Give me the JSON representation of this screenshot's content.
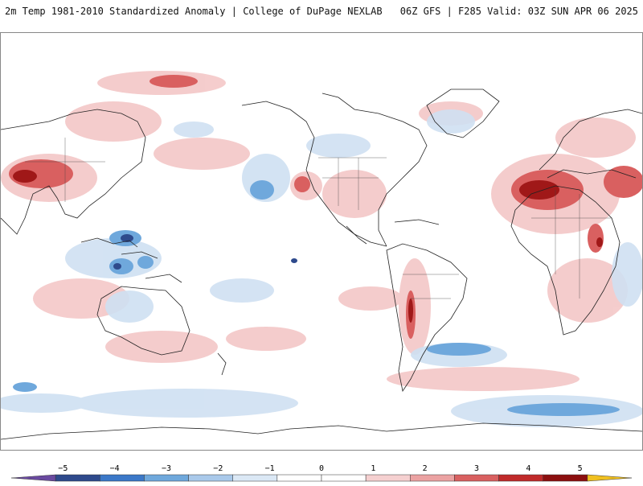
{
  "header": {
    "title": "2m Temp 1981-2010 Standardized Anomaly | College of DuPage NEXLAB",
    "run_info": "06Z GFS | F285 Valid: 03Z SUN APR 06 2025"
  },
  "colorbar": {
    "ticks": [
      {
        "value": -5,
        "label": "−5"
      },
      {
        "value": -4,
        "label": "−4"
      },
      {
        "value": -3,
        "label": "−3"
      },
      {
        "value": -2,
        "label": "−2"
      },
      {
        "value": -1,
        "label": "−1"
      },
      {
        "value": 0,
        "label": "0"
      },
      {
        "value": 1,
        "label": "1"
      },
      {
        "value": 2,
        "label": "2"
      },
      {
        "value": 3,
        "label": "3"
      },
      {
        "value": 4,
        "label": "4"
      },
      {
        "value": 5,
        "label": "5"
      }
    ],
    "colors": [
      "#6a4aa0",
      "#2e4a8c",
      "#3b78c8",
      "#6fa8dc",
      "#a9c9ea",
      "#dbe8f5",
      "#ffffff",
      "#ffffff",
      "#f5d0d0",
      "#eba2a2",
      "#d96060",
      "#c02a2a",
      "#8c0f0f",
      "#f0c020"
    ],
    "range": [
      -6,
      6
    ]
  },
  "map": {
    "projection": "equirectangular",
    "center_longitude": -180,
    "shading": {
      "warm_color": "#e03030",
      "cool_color": "#3b78c8"
    }
  }
}
